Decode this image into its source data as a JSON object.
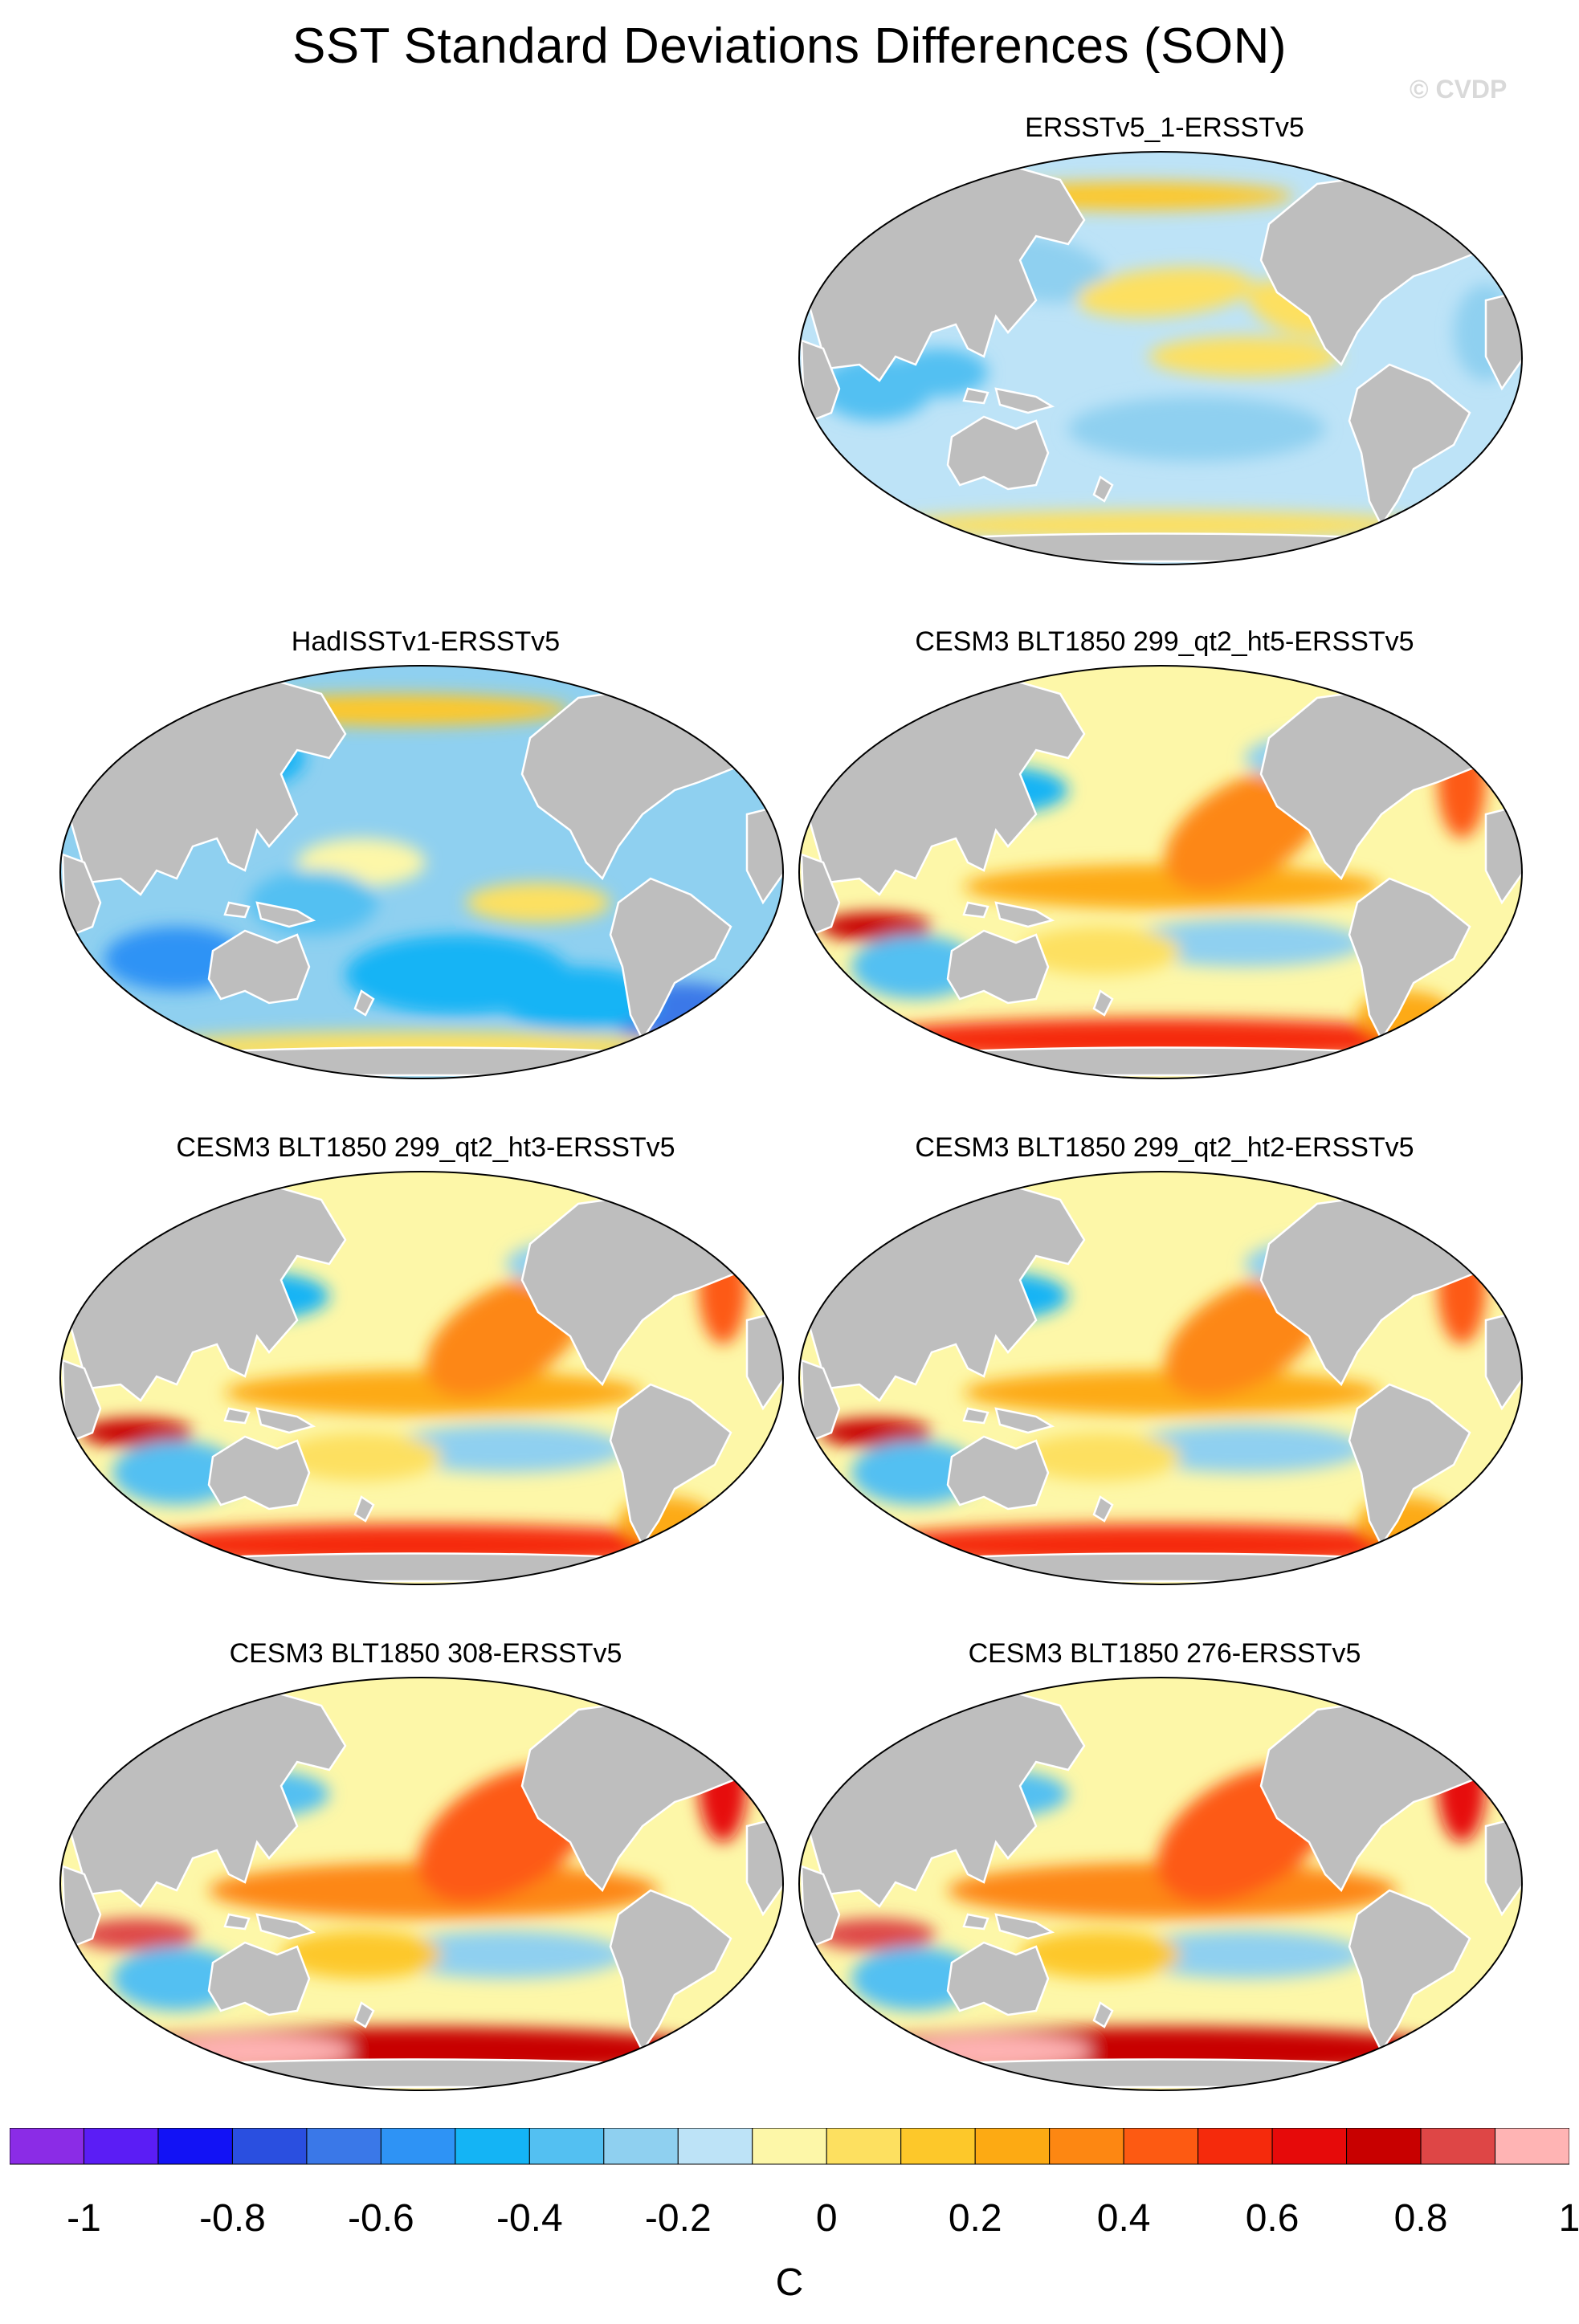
{
  "title": "SST Standard Deviations Differences (SON)",
  "copyright": "© CVDP",
  "panels": [
    {
      "title": "ERSSTv5_1-ERSSTv5",
      "slot": "r0c1",
      "style": "weakneg"
    },
    {
      "title": "HadISSTv1-ERSSTv5",
      "slot": "r1c0",
      "style": "neg"
    },
    {
      "title": "CESM3 BLT1850 299_qt2_ht5-ERSSTv5",
      "slot": "r1c1",
      "style": "model"
    },
    {
      "title": "CESM3 BLT1850 299_qt2_ht3-ERSSTv5",
      "slot": "r2c0",
      "style": "model"
    },
    {
      "title": "CESM3 BLT1850 299_qt2_ht2-ERSSTv5",
      "slot": "r2c1",
      "style": "model"
    },
    {
      "title": "CESM3 BLT1850 308-ERSSTv5",
      "slot": "r3c0",
      "style": "model_strong"
    },
    {
      "title": "CESM3 BLT1850 276-ERSSTv5",
      "slot": "r3c1",
      "style": "model_strong"
    }
  ],
  "colorbar": {
    "unit": "C",
    "tick_labels": [
      "-1",
      "-0.8",
      "-0.6",
      "-0.4",
      "-0.2",
      "0",
      "0.2",
      "0.4",
      "0.6",
      "0.8",
      "1"
    ],
    "range": [
      -1.1,
      1.1
    ],
    "colors": [
      "#8b2ce6",
      "#5b1df5",
      "#1212f5",
      "#2a4fe0",
      "#3a78e8",
      "#2e93f5",
      "#14b4f5",
      "#53c0f2",
      "#8fd0f0",
      "#bde3f7",
      "#fdf7a8",
      "#fde060",
      "#fdc82a",
      "#fdaa13",
      "#fd8712",
      "#fd5a12",
      "#f52a0c",
      "#e60a0a",
      "#c80000",
      "#de4646",
      "#ffb4b4"
    ]
  },
  "legend_colors": {
    "land": "#bebebe",
    "coast": "#ffffff"
  }
}
